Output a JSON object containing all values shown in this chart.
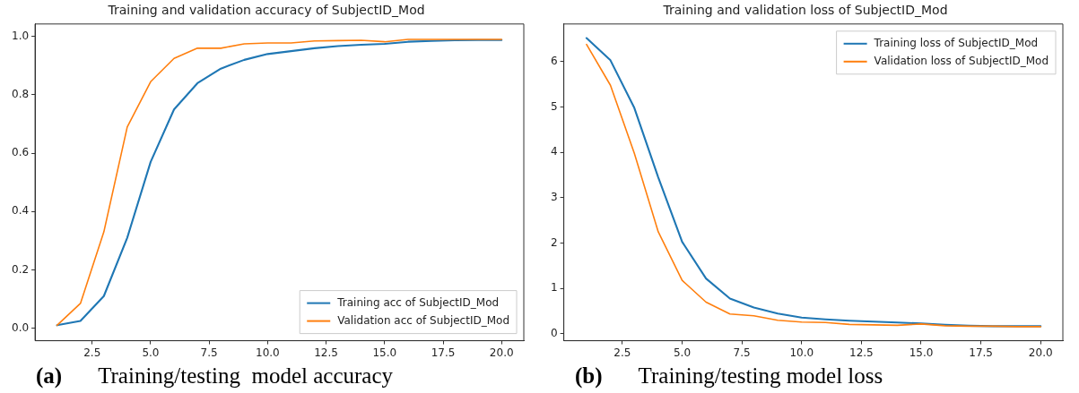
{
  "chart_data": [
    {
      "type": "line",
      "title": "Training and validation accuracy of SubjectID_Mod",
      "x": [
        1,
        2,
        3,
        4,
        5,
        6,
        7,
        8,
        9,
        10,
        11,
        12,
        13,
        14,
        15,
        16,
        17,
        18,
        19,
        20
      ],
      "series": [
        {
          "name": "Training acc of SubjectID_Mod",
          "color": "#1f77b4",
          "values": [
            0.01,
            0.025,
            0.11,
            0.31,
            0.57,
            0.75,
            0.84,
            0.89,
            0.92,
            0.94,
            0.95,
            0.96,
            0.967,
            0.972,
            0.975,
            0.982,
            0.985,
            0.987,
            0.988,
            0.988
          ]
        },
        {
          "name": "Validation acc of SubjectID_Mod",
          "color": "#ff7f0e",
          "values": [
            0.01,
            0.085,
            0.33,
            0.69,
            0.845,
            0.925,
            0.96,
            0.96,
            0.975,
            0.978,
            0.978,
            0.985,
            0.986,
            0.987,
            0.982,
            0.99,
            0.99,
            0.99,
            0.99,
            0.99
          ]
        }
      ],
      "xlim": [
        0.06,
        20.95
      ],
      "xticks": [
        2.5,
        {
          "value": 5,
          "label": "5.0"
        },
        7.5,
        {
          "value": 10,
          "label": "10.0"
        },
        12.5,
        {
          "value": 15,
          "label": "15.0"
        },
        17.5,
        {
          "value": 20,
          "label": "20.0"
        }
      ],
      "ylim": [
        -0.043,
        1.043
      ],
      "yticks": [
        {
          "value": 0,
          "label": "0.0"
        },
        0.2,
        0.4,
        0.6,
        0.8,
        {
          "value": 1,
          "label": "1.0"
        }
      ],
      "legend": "bottom right",
      "grid": false,
      "line_style": "solid",
      "marker": "none",
      "annotations": [
        "(a)",
        "Training/testing  model accuracy"
      ]
    },
    {
      "type": "line",
      "title": "Training and validation loss of SubjectID_Mod",
      "x": [
        1,
        2,
        3,
        4,
        5,
        6,
        7,
        8,
        9,
        10,
        11,
        12,
        13,
        14,
        15,
        16,
        17,
        18,
        19,
        20
      ],
      "series": [
        {
          "name": "Training loss of SubjectID_Mod",
          "color": "#1f77b4",
          "values": [
            6.52,
            6.03,
            4.98,
            3.45,
            2.03,
            1.22,
            0.78,
            0.58,
            0.45,
            0.36,
            0.32,
            0.29,
            0.27,
            0.25,
            0.23,
            0.2,
            0.18,
            0.17,
            0.17,
            0.17
          ]
        },
        {
          "name": "Validation loss of SubjectID_Mod",
          "color": "#ff7f0e",
          "values": [
            6.38,
            5.48,
            3.98,
            2.25,
            1.18,
            0.7,
            0.44,
            0.4,
            0.3,
            0.26,
            0.25,
            0.21,
            0.2,
            0.19,
            0.22,
            0.18,
            0.17,
            0.17,
            0.16,
            0.16
          ]
        }
      ],
      "xlim": [
        0.05,
        20.93
      ],
      "xticks": [
        2.5,
        {
          "value": 5,
          "label": "5.0"
        },
        7.5,
        {
          "value": 10,
          "label": "10.0"
        },
        12.5,
        {
          "value": 15,
          "label": "15.0"
        },
        17.5,
        {
          "value": 20,
          "label": "20.0"
        }
      ],
      "ylim": [
        -0.15,
        6.83
      ],
      "yticks": [
        0,
        1,
        2,
        3,
        4,
        5,
        6
      ],
      "legend": "top right",
      "grid": false,
      "line_style": "solid",
      "marker": "none",
      "annotations": [
        "(b)",
        "Training/testing model loss"
      ]
    }
  ]
}
